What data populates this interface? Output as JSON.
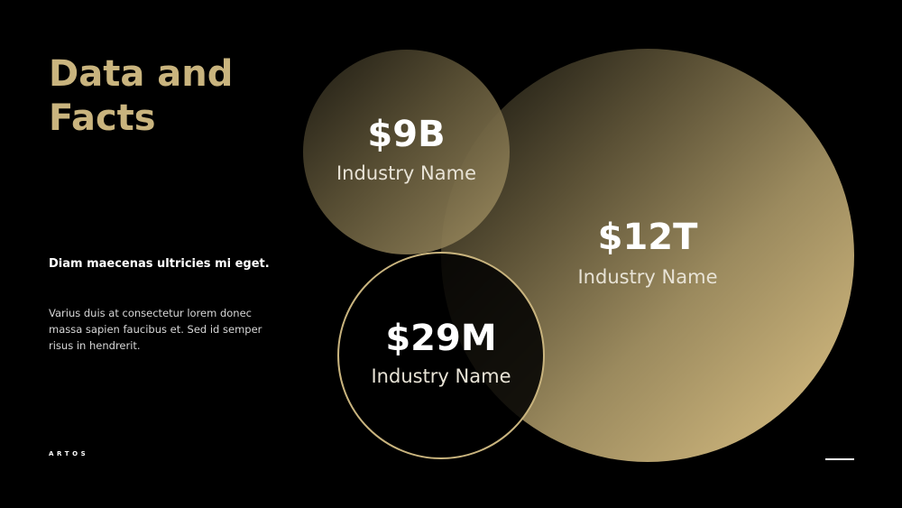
{
  "slide": {
    "title_line1": "Data and",
    "title_line2": "Facts",
    "subtitle": "Diam maecenas ultricies mi eget.",
    "body": "Varius duis at consectetur lorem donec massa sapien faucibus et. Sed id semper risus in hendrerit.",
    "brand": "ARTOS"
  },
  "stats": [
    {
      "value": "$9B",
      "label": "Industry Name"
    },
    {
      "value": "$12T",
      "label": "Industry Name"
    },
    {
      "value": "$29M",
      "label": "Industry Name"
    }
  ],
  "colors": {
    "background": "#000000",
    "accent_gold": "#c9b47e",
    "text_white": "#ffffff"
  }
}
